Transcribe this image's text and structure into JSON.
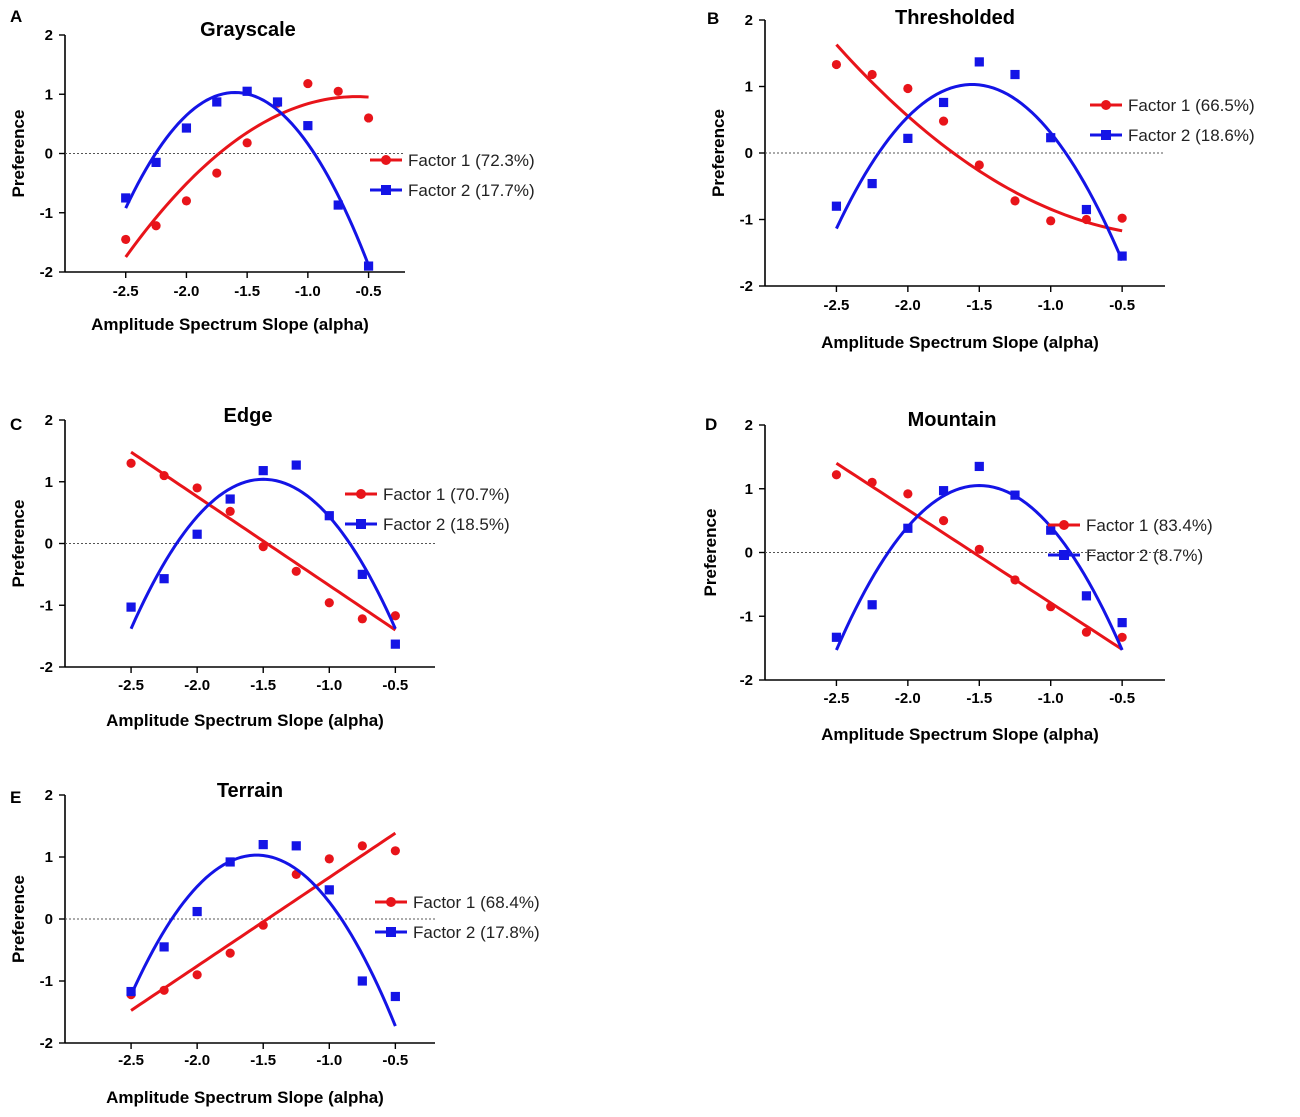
{
  "figure": {
    "colors": {
      "factor1": "#e8141a",
      "factor2": "#1414e6",
      "axis": "#000000",
      "zero_line": "#555555"
    }
  },
  "chart_data": [
    {
      "panel": "A",
      "type": "scatter",
      "title": "Grayscale",
      "xlabel": "Amplitude Spectrum Slope (alpha)",
      "ylabel": "Preference",
      "xlim": [
        -3.0,
        -0.2
      ],
      "ylim": [
        -2,
        2
      ],
      "x_ticks": [
        -2.5,
        -2.0,
        -1.5,
        -1.0,
        -0.5
      ],
      "x_tick_labels": [
        "-2.5",
        "-2.0",
        "-1.5",
        "-1.0",
        "-0.5"
      ],
      "y_ticks": [
        -2,
        -1,
        0,
        1,
        2
      ],
      "y_tick_labels": [
        "-2",
        "-1",
        "0",
        "1",
        "2"
      ],
      "zero_line": true,
      "legend": [
        "Factor 1 (72.3%)",
        "Factor 2 (17.7%)"
      ],
      "x": [
        -2.5,
        -2.25,
        -2.0,
        -1.75,
        -1.5,
        -1.25,
        -1.0,
        -0.75,
        -0.5
      ],
      "series": [
        {
          "name": "Factor 1 (72.3%)",
          "color": "#e8141a",
          "marker": "circle",
          "values": [
            -1.45,
            -1.22,
            -0.8,
            -0.33,
            0.18,
            0.85,
            1.18,
            1.05,
            0.6
          ],
          "fit": {
            "kind": "quadratic",
            "vertex_x": -0.6,
            "vertex_y": 0.96,
            "a": -0.75
          }
        },
        {
          "name": "Factor 2 (17.7%)",
          "color": "#1414e6",
          "marker": "square",
          "values": [
            -0.75,
            -0.15,
            0.43,
            0.87,
            1.05,
            0.87,
            0.47,
            -0.87,
            -1.9
          ],
          "fit": {
            "kind": "quadratic",
            "vertex_x": -1.6,
            "vertex_y": 1.03,
            "a": -2.41
          }
        }
      ]
    },
    {
      "panel": "B",
      "type": "scatter",
      "title": "Thresholded",
      "xlabel": "Amplitude Spectrum Slope (alpha)",
      "ylabel": "Preference",
      "xlim": [
        -3.0,
        -0.2
      ],
      "ylim": [
        -2,
        2
      ],
      "x_ticks": [
        -2.5,
        -2.0,
        -1.5,
        -1.0,
        -0.5
      ],
      "x_tick_labels": [
        "-2.5",
        "-2.0",
        "-1.5",
        "-1.0",
        "-0.5"
      ],
      "y_ticks": [
        -2,
        -1,
        0,
        1,
        2
      ],
      "y_tick_labels": [
        "-2",
        "-1",
        "0",
        "1",
        "2"
      ],
      "zero_line": true,
      "legend": [
        "Factor 1 (66.5%)",
        "Factor 2 (18.6%)"
      ],
      "x": [
        -2.5,
        -2.25,
        -2.0,
        -1.75,
        -1.5,
        -1.25,
        -1.0,
        -0.75,
        -0.5
      ],
      "series": [
        {
          "name": "Factor 1 (66.5%)",
          "color": "#e8141a",
          "marker": "circle",
          "values": [
            1.33,
            1.18,
            0.97,
            0.48,
            -0.18,
            -0.72,
            -1.02,
            -1.0,
            -0.98
          ],
          "fit": {
            "kind": "quadratic",
            "vertex_x": -0.1,
            "vertex_y": -1.25,
            "a": 0.5
          }
        },
        {
          "name": "Factor 2 (18.6%)",
          "color": "#1414e6",
          "marker": "square",
          "values": [
            -0.8,
            -0.46,
            0.22,
            0.76,
            1.37,
            1.18,
            0.23,
            -0.85,
            -1.55
          ],
          "fit": {
            "kind": "quadratic",
            "vertex_x": -1.55,
            "vertex_y": 1.03,
            "a": -2.4
          }
        }
      ]
    },
    {
      "panel": "C",
      "type": "scatter",
      "title": "Edge",
      "xlabel": "Amplitude Spectrum Slope (alpha)",
      "ylabel": "Preference",
      "xlim": [
        -3.0,
        -0.2
      ],
      "ylim": [
        -2,
        2
      ],
      "x_ticks": [
        -2.5,
        -2.0,
        -1.5,
        -1.0,
        -0.5
      ],
      "x_tick_labels": [
        "-2.5",
        "-2.0",
        "-1.5",
        "-1.0",
        "-0.5"
      ],
      "y_ticks": [
        -2,
        -1,
        0,
        1,
        2
      ],
      "y_tick_labels": [
        "-2",
        "-1",
        "0",
        "1",
        "2"
      ],
      "zero_line": true,
      "legend": [
        "Factor 1 (70.7%)",
        "Factor 2 (18.5%)"
      ],
      "x": [
        -2.5,
        -2.25,
        -2.0,
        -1.75,
        -1.5,
        -1.25,
        -1.0,
        -0.75,
        -0.5
      ],
      "series": [
        {
          "name": "Factor 1 (70.7%)",
          "color": "#e8141a",
          "marker": "circle",
          "values": [
            1.3,
            1.1,
            0.9,
            0.52,
            -0.05,
            -0.45,
            -0.96,
            -1.22,
            -1.17
          ],
          "fit": {
            "kind": "linear",
            "slope": -1.44,
            "intercept": -2.12
          }
        },
        {
          "name": "Factor 2 (18.5%)",
          "color": "#1414e6",
          "marker": "square",
          "values": [
            -1.03,
            -0.57,
            0.15,
            0.72,
            1.18,
            1.27,
            0.45,
            -0.5,
            -1.63
          ],
          "fit": {
            "kind": "quadratic",
            "vertex_x": -1.5,
            "vertex_y": 1.04,
            "a": -2.42
          }
        }
      ]
    },
    {
      "panel": "D",
      "type": "scatter",
      "title": "Mountain",
      "xlabel": "Amplitude Spectrum Slope (alpha)",
      "ylabel": "Preference",
      "xlim": [
        -3.0,
        -0.2
      ],
      "ylim": [
        -2,
        2
      ],
      "x_ticks": [
        -2.5,
        -2.0,
        -1.5,
        -1.0,
        -0.5
      ],
      "x_tick_labels": [
        "-2.5",
        "-2.0",
        "-1.5",
        "-1.0",
        "-0.5"
      ],
      "y_ticks": [
        -2,
        -1,
        0,
        1,
        2
      ],
      "y_tick_labels": [
        "-2",
        "-1",
        "0",
        "1",
        "2"
      ],
      "zero_line": true,
      "legend": [
        "Factor 1 (83.4%)",
        "Factor 2 (8.7%)"
      ],
      "x": [
        -2.5,
        -2.25,
        -2.0,
        -1.75,
        -1.5,
        -1.25,
        -1.0,
        -0.75,
        -0.5
      ],
      "series": [
        {
          "name": "Factor 1 (83.4%)",
          "color": "#e8141a",
          "marker": "circle",
          "values": [
            1.22,
            1.1,
            0.92,
            0.5,
            0.05,
            -0.43,
            -0.85,
            -1.25,
            -1.33
          ],
          "fit": {
            "kind": "linear",
            "slope": -1.46,
            "intercept": -2.25
          }
        },
        {
          "name": "Factor 2 (8.7%)",
          "color": "#1414e6",
          "marker": "square",
          "values": [
            -1.33,
            -0.82,
            0.38,
            0.97,
            1.35,
            0.9,
            0.35,
            -0.68,
            -1.1
          ],
          "fit": {
            "kind": "quadratic",
            "vertex_x": -1.5,
            "vertex_y": 1.05,
            "a": -2.58
          }
        }
      ]
    },
    {
      "panel": "E",
      "type": "scatter",
      "title": "Terrain",
      "xlabel": "Amplitude Spectrum Slope (alpha)",
      "ylabel": "Preference",
      "xlim": [
        -3.0,
        -0.2
      ],
      "ylim": [
        -2,
        2
      ],
      "x_ticks": [
        -2.5,
        -2.0,
        -1.5,
        -1.0,
        -0.5
      ],
      "x_tick_labels": [
        "-2.5",
        "-2.0",
        "-1.5",
        "-1.0",
        "-0.5"
      ],
      "y_ticks": [
        -2,
        -1,
        0,
        1,
        2
      ],
      "y_tick_labels": [
        "-2",
        "-1",
        "0",
        "1",
        "2"
      ],
      "zero_line": true,
      "legend": [
        "Factor 1 (68.4%)",
        "Factor 2 (17.8%)"
      ],
      "x": [
        -2.5,
        -2.25,
        -2.0,
        -1.75,
        -1.5,
        -1.25,
        -1.0,
        -0.75,
        -0.5
      ],
      "series": [
        {
          "name": "Factor 1 (68.4%)",
          "color": "#e8141a",
          "marker": "circle",
          "values": [
            -1.22,
            -1.15,
            -0.9,
            -0.55,
            -0.1,
            0.72,
            0.97,
            1.18,
            1.1
          ],
          "fit": {
            "kind": "linear",
            "slope": 1.43,
            "intercept": 2.1
          }
        },
        {
          "name": "Factor 2 (17.8%)",
          "color": "#1414e6",
          "marker": "square",
          "values": [
            -1.17,
            -0.45,
            0.12,
            0.92,
            1.2,
            1.18,
            0.47,
            -1.0,
            -1.25
          ],
          "fit": {
            "kind": "quadratic",
            "vertex_x": -1.55,
            "vertex_y": 1.03,
            "a": -2.5
          }
        }
      ]
    }
  ]
}
